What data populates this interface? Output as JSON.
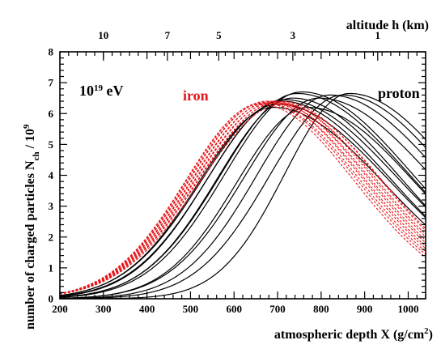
{
  "chart_data": {
    "type": "line",
    "xlabel": "atmospheric depth X (g/cm",
    "xlabel_sup": "2",
    "xlabel_tail": ")",
    "ylabel_main": "number of charged particles N",
    "ylabel_sub": "ch",
    "ylabel_tail": " / 10",
    "ylabel_sup": "9",
    "top_axis_label": "altitude h (km)",
    "xlim": [
      200,
      1040
    ],
    "ylim": [
      0,
      8
    ],
    "x_ticks": [
      200,
      300,
      400,
      500,
      600,
      700,
      800,
      900,
      1000
    ],
    "y_ticks": [
      0,
      1,
      2,
      3,
      4,
      5,
      6,
      7,
      8
    ],
    "top_ticks": [
      {
        "label": "10",
        "x": 300
      },
      {
        "label": "7",
        "x": 447
      },
      {
        "label": "5",
        "x": 565
      },
      {
        "label": "3",
        "x": 735
      },
      {
        "label": "1",
        "x": 930
      }
    ],
    "annotations": {
      "energy_base": "10",
      "energy_exp": "19",
      "energy_unit": " eV",
      "iron": "iron",
      "proton": "proton"
    },
    "colors": {
      "iron": "#e8161a",
      "proton": "#000000"
    },
    "series": [
      {
        "name": "proton",
        "style": "solid",
        "curves": [
          {
            "xmax": 690,
            "nmax": 6.2,
            "w0": 230,
            "w1": 340
          },
          {
            "xmax": 700,
            "nmax": 6.3,
            "w0": 235,
            "w1": 345
          },
          {
            "xmax": 710,
            "nmax": 6.4,
            "w0": 230,
            "w1": 335
          },
          {
            "xmax": 715,
            "nmax": 6.45,
            "w0": 235,
            "w1": 350
          },
          {
            "xmax": 735,
            "nmax": 6.5,
            "w0": 230,
            "w1": 330
          },
          {
            "xmax": 745,
            "nmax": 6.65,
            "w0": 235,
            "w1": 345
          },
          {
            "xmax": 755,
            "nmax": 6.7,
            "w0": 235,
            "w1": 340
          },
          {
            "xmax": 770,
            "nmax": 6.2,
            "w0": 220,
            "w1": 330
          },
          {
            "xmax": 795,
            "nmax": 6.5,
            "w0": 230,
            "w1": 350
          },
          {
            "xmax": 820,
            "nmax": 6.6,
            "w0": 225,
            "w1": 345
          },
          {
            "xmax": 850,
            "nmax": 6.6,
            "w0": 225,
            "w1": 330
          },
          {
            "xmax": 865,
            "nmax": 6.65,
            "w0": 200,
            "w1": 330
          }
        ]
      },
      {
        "name": "iron",
        "style": "dotted",
        "curves": [
          {
            "xmax": 660,
            "nmax": 6.3,
            "w0": 230,
            "w1": 290
          },
          {
            "xmax": 665,
            "nmax": 6.35,
            "w0": 232,
            "w1": 292
          },
          {
            "xmax": 670,
            "nmax": 6.35,
            "w0": 234,
            "w1": 294
          },
          {
            "xmax": 675,
            "nmax": 6.4,
            "w0": 236,
            "w1": 296
          },
          {
            "xmax": 680,
            "nmax": 6.35,
            "w0": 238,
            "w1": 298
          },
          {
            "xmax": 685,
            "nmax": 6.4,
            "w0": 240,
            "w1": 300
          },
          {
            "xmax": 690,
            "nmax": 6.35,
            "w0": 242,
            "w1": 302
          },
          {
            "xmax": 695,
            "nmax": 6.4,
            "w0": 244,
            "w1": 304
          },
          {
            "xmax": 700,
            "nmax": 6.35,
            "w0": 246,
            "w1": 306
          },
          {
            "xmax": 705,
            "nmax": 6.4,
            "w0": 248,
            "w1": 308
          },
          {
            "xmax": 710,
            "nmax": 6.3,
            "w0": 250,
            "w1": 310
          }
        ]
      }
    ]
  }
}
